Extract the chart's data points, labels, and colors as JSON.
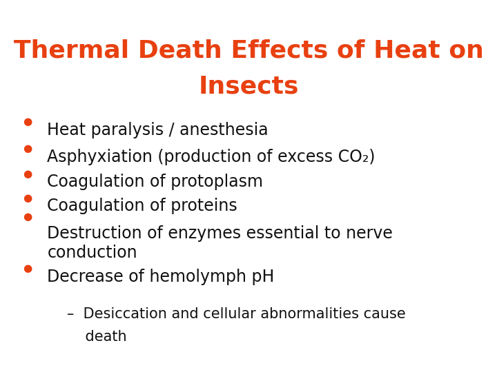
{
  "title_line1": "Thermal Death Effects of Heat on",
  "title_line2": "Insects",
  "title_color": "#E84010",
  "title_fontsize": 26,
  "title_fontweight": "bold",
  "title_fontfamily": "DejaVu Sans",
  "bullet_color": "#E84010",
  "text_color": "#111111",
  "bullet_fontsize": 17,
  "sub_fontsize": 15,
  "background_color": "#ffffff",
  "bullets": [
    "Heat paralysis / anesthesia",
    "Asphyxiation (production of excess CO₂)",
    "Coagulation of protoplasm",
    "Coagulation of proteins",
    "Destruction of enzymes essential to nerve\nconduction",
    "Decrease of hemolymph pH"
  ],
  "sub_bullet_line1": "–  Desiccation and cellular abnormalities cause",
  "sub_bullet_line2": "    death"
}
